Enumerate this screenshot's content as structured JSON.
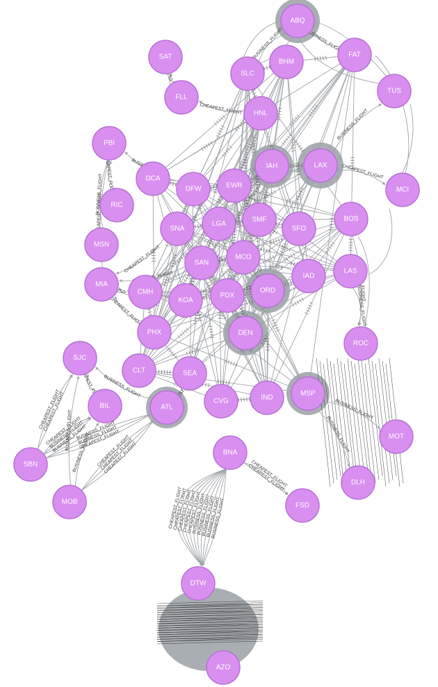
{
  "graph": {
    "nodes": [
      {
        "id": "ABQ",
        "label": "ABQ"
      },
      {
        "id": "SAT",
        "label": "SAT"
      },
      {
        "id": "BHM",
        "label": "BHM"
      },
      {
        "id": "FAT",
        "label": "FAT"
      },
      {
        "id": "SLC",
        "label": "SLC"
      },
      {
        "id": "TUS",
        "label": "TUS"
      },
      {
        "id": "FLL",
        "label": "FLL"
      },
      {
        "id": "HNL",
        "label": "HNL"
      },
      {
        "id": "PBI",
        "label": "PBI"
      },
      {
        "id": "IAH",
        "label": "IAH"
      },
      {
        "id": "LAX",
        "label": "LAX"
      },
      {
        "id": "DCA",
        "label": "DCA"
      },
      {
        "id": "DFW",
        "label": "DFW"
      },
      {
        "id": "EWR",
        "label": "EWR"
      },
      {
        "id": "MCI",
        "label": "MCI"
      },
      {
        "id": "RIC",
        "label": "RIC"
      },
      {
        "id": "SNA",
        "label": "SNA"
      },
      {
        "id": "LGA",
        "label": "LGA"
      },
      {
        "id": "SMF",
        "label": "SMF"
      },
      {
        "id": "SFO",
        "label": "SFO"
      },
      {
        "id": "BOS",
        "label": "BOS"
      },
      {
        "id": "MSN",
        "label": "MSN"
      },
      {
        "id": "SAN",
        "label": "SAN"
      },
      {
        "id": "MCO",
        "label": "MCO"
      },
      {
        "id": "IAD",
        "label": "IAD"
      },
      {
        "id": "LAS",
        "label": "LAS"
      },
      {
        "id": "MIA",
        "label": "MIA"
      },
      {
        "id": "CMH",
        "label": "CMH"
      },
      {
        "id": "KOA",
        "label": "KOA"
      },
      {
        "id": "PDX",
        "label": "PDX"
      },
      {
        "id": "ORD",
        "label": "ORD"
      },
      {
        "id": "PHX",
        "label": "PHX"
      },
      {
        "id": "DEN",
        "label": "DEN"
      },
      {
        "id": "ROC",
        "label": "ROC"
      },
      {
        "id": "SJC",
        "label": "SJC"
      },
      {
        "id": "CLT",
        "label": "CLT"
      },
      {
        "id": "SEA",
        "label": "SEA"
      },
      {
        "id": "BIL",
        "label": "BIL"
      },
      {
        "id": "ATL",
        "label": "ATL"
      },
      {
        "id": "CVG",
        "label": "CVG"
      },
      {
        "id": "IND",
        "label": "IND"
      },
      {
        "id": "MSP",
        "label": "MSP"
      },
      {
        "id": "MOT",
        "label": "MOT"
      },
      {
        "id": "SBN",
        "label": "SBN"
      },
      {
        "id": "BNA",
        "label": "BNA"
      },
      {
        "id": "DLH",
        "label": "DLH"
      },
      {
        "id": "MOB",
        "label": "MOB"
      },
      {
        "id": "FSD",
        "label": "FSD"
      },
      {
        "id": "DTW",
        "label": "DTW"
      },
      {
        "id": "AZO",
        "label": "AZO"
      }
    ],
    "edge_types": [
      "CHEAPEST_FLIGHT",
      "BUSINESS_FLIGHT"
    ],
    "edges": [
      {
        "from": "SBN",
        "to": "SJC",
        "type": "CHEAPEST_FLIGHT"
      },
      {
        "from": "SBN",
        "to": "SJC",
        "type": "CHEAPEST_FLIGHT"
      },
      {
        "from": "SBN",
        "to": "BIL",
        "type": "CHEAPEST_FLIGHT"
      },
      {
        "from": "SBN",
        "to": "BIL",
        "type": "BUSINESS_FLIGHT"
      },
      {
        "from": "SBN",
        "to": "BIL",
        "type": "BUSINESS_FLIGHT"
      },
      {
        "from": "SBN",
        "to": "ATL",
        "type": "BUSINESS_FLIGHT"
      },
      {
        "from": "SBN",
        "to": "ATL",
        "type": "BUSINESS_FLIGHT"
      },
      {
        "from": "SBN",
        "to": "ATL",
        "type": "CHEAPEST_FLIGHT"
      },
      {
        "from": "MOB",
        "to": "BIL",
        "type": "BUSINESS_FLIGHT"
      },
      {
        "from": "MOB",
        "to": "ATL",
        "type": "CHEAPEST_FLIGHT"
      },
      {
        "from": "MOB",
        "to": "ATL",
        "type": "CHEAPEST_FLIGHT"
      },
      {
        "from": "MOB",
        "to": "ATL",
        "type": "CHEAPEST_FLIGHT"
      },
      {
        "from": "MOB",
        "to": "SJC",
        "type": "BUSINESS_FLIGHT"
      },
      {
        "from": "MIA",
        "to": "PBI",
        "type": "CHEAPEST_FLIGHT"
      },
      {
        "from": "MSN",
        "to": "PBI",
        "type": "BUSINESS_FLIGHT"
      },
      {
        "from": "RIC",
        "to": "PBI",
        "type": "CHEAPEST_FLIGHT"
      },
      {
        "from": "SNA",
        "to": "MIA",
        "type": "CHEAPEST_FLIGHT"
      },
      {
        "from": "SAN",
        "to": "MIA",
        "type": "BUSINESS_FLIGHT"
      },
      {
        "from": "DFW",
        "to": "PBI",
        "type": "BUSINESS_FLIGHT"
      },
      {
        "from": "FLL",
        "to": "SAT",
        "type": "BUSINESS_FLIGHT"
      },
      {
        "from": "HNL",
        "to": "FLL",
        "type": "CHEAPEST_FLIGHT"
      },
      {
        "from": "BNA",
        "to": "DTW",
        "type": "BUSINESS_FLIGHT"
      },
      {
        "from": "BNA",
        "to": "DTW",
        "type": "BUSINESS_FLIGHT"
      },
      {
        "from": "BNA",
        "to": "DTW",
        "type": "BUSINESS_FLIGHT"
      },
      {
        "from": "BNA",
        "to": "DTW",
        "type": "BUSINESS_FLIGHT"
      },
      {
        "from": "BNA",
        "to": "DTW",
        "type": "BUSINESS_FLIGHT"
      },
      {
        "from": "BNA",
        "to": "DTW",
        "type": "CHEAPEST_FLIGHT"
      },
      {
        "from": "BNA",
        "to": "DTW",
        "type": "CHEAPEST_FLIGHT"
      },
      {
        "from": "BNA",
        "to": "DTW",
        "type": "CHEAPEST_FLIGHT"
      },
      {
        "from": "BNA",
        "to": "DTW",
        "type": "CHEAPEST_FLIGHT"
      },
      {
        "from": "BNA",
        "to": "DTW",
        "type": "CHEAPEST_FLIGHT"
      },
      {
        "from": "BNA",
        "to": "FSD",
        "type": "CHEAPEST_FLIGHT"
      },
      {
        "from": "BNA",
        "to": "FSD",
        "type": "CHEAPEST_FLIGHT"
      },
      {
        "from": "MSP",
        "to": "DLH",
        "type": "BUSINESS_FLIGHT"
      },
      {
        "from": "MSP",
        "to": "MOT",
        "type": "BUSINESS_FLIGHT"
      },
      {
        "from": "LAX",
        "to": "MCI",
        "type": "CHEAPEST_FLIGHT"
      },
      {
        "from": "LAX",
        "to": "TUS",
        "type": "BUSINESS_FLIGHT"
      },
      {
        "from": "BOS",
        "to": "ROC",
        "type": "CHEAPEST_FLIGHT"
      },
      {
        "from": "LAS",
        "to": "ROC",
        "type": "BUSINESS_FLIGHT"
      },
      {
        "from": "SLC",
        "to": "ABQ",
        "type": "BUSINESS_FLIGHT"
      },
      {
        "from": "FAT",
        "to": "ABQ",
        "type": "BUSINESS_FLIGHT"
      },
      {
        "from": "SEA",
        "to": "ATL",
        "type": "CHEAPEST_FLIGHT"
      },
      {
        "from": "PHX",
        "to": "MIA",
        "type": "CHEAPEST_FLIGHT"
      },
      {
        "from": "CMH",
        "to": "MIA",
        "type": "BUSINESS_FLIGHT"
      },
      {
        "from": "BIL",
        "to": "SJC",
        "type": "CHEAPEST_FLIGHT"
      },
      {
        "from": "ATL",
        "to": "SJC",
        "type": "BUSINESS_FLIGHT"
      }
    ]
  }
}
